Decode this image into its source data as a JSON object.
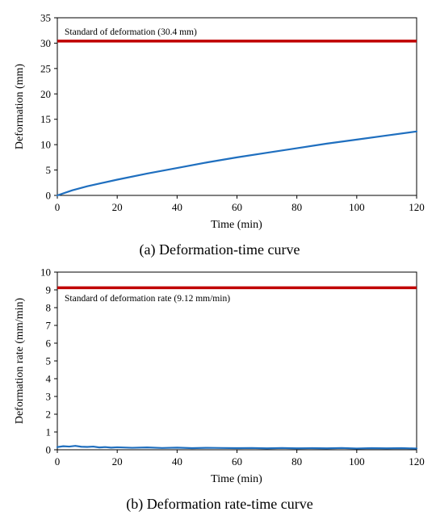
{
  "chart_data": [
    {
      "type": "line",
      "caption": "(a) Deformation-time curve",
      "xlabel": "Time (min)",
      "ylabel": "Deformation (mm)",
      "xlim": [
        0,
        120
      ],
      "ylim": [
        0,
        35
      ],
      "xticks": [
        0,
        20,
        40,
        60,
        80,
        100,
        120
      ],
      "yticks": [
        0,
        5,
        10,
        15,
        20,
        25,
        30,
        35
      ],
      "grid": false,
      "reference_line": {
        "label": "Standard of deformation (30.4 mm)",
        "y": 30.4,
        "color": "#c00000"
      },
      "series": [
        {
          "color": "#1f6fbf",
          "x": [
            0,
            5,
            10,
            20,
            30,
            40,
            50,
            60,
            70,
            80,
            90,
            100,
            110,
            120
          ],
          "y": [
            0,
            1.0,
            1.8,
            3.1,
            4.3,
            5.4,
            6.5,
            7.5,
            8.4,
            9.3,
            10.2,
            11.0,
            11.8,
            12.6
          ]
        }
      ]
    },
    {
      "type": "line",
      "caption": "(b) Deformation rate-time curve",
      "xlabel": "Time (min)",
      "ylabel": "Deformation rate (mm/min)",
      "xlim": [
        0,
        120
      ],
      "ylim": [
        0,
        10
      ],
      "xticks": [
        0,
        20,
        40,
        60,
        80,
        100,
        120
      ],
      "yticks": [
        0,
        1,
        2,
        3,
        4,
        5,
        6,
        7,
        8,
        9,
        10
      ],
      "grid": false,
      "reference_line": {
        "label": "Standard of deformation rate (9.12 mm/min)",
        "y": 9.12,
        "color": "#c00000"
      },
      "series": [
        {
          "color": "#1f6fbf",
          "x": [
            0,
            2,
            4,
            6,
            8,
            10,
            12,
            14,
            16,
            18,
            20,
            25,
            30,
            35,
            40,
            45,
            50,
            55,
            60,
            65,
            70,
            75,
            80,
            85,
            90,
            95,
            100,
            105,
            110,
            115,
            120
          ],
          "y": [
            0.15,
            0.2,
            0.18,
            0.22,
            0.17,
            0.16,
            0.18,
            0.13,
            0.15,
            0.12,
            0.14,
            0.11,
            0.13,
            0.1,
            0.12,
            0.09,
            0.11,
            0.1,
            0.09,
            0.1,
            0.08,
            0.1,
            0.08,
            0.09,
            0.08,
            0.1,
            0.07,
            0.09,
            0.08,
            0.09,
            0.07
          ]
        }
      ]
    }
  ]
}
